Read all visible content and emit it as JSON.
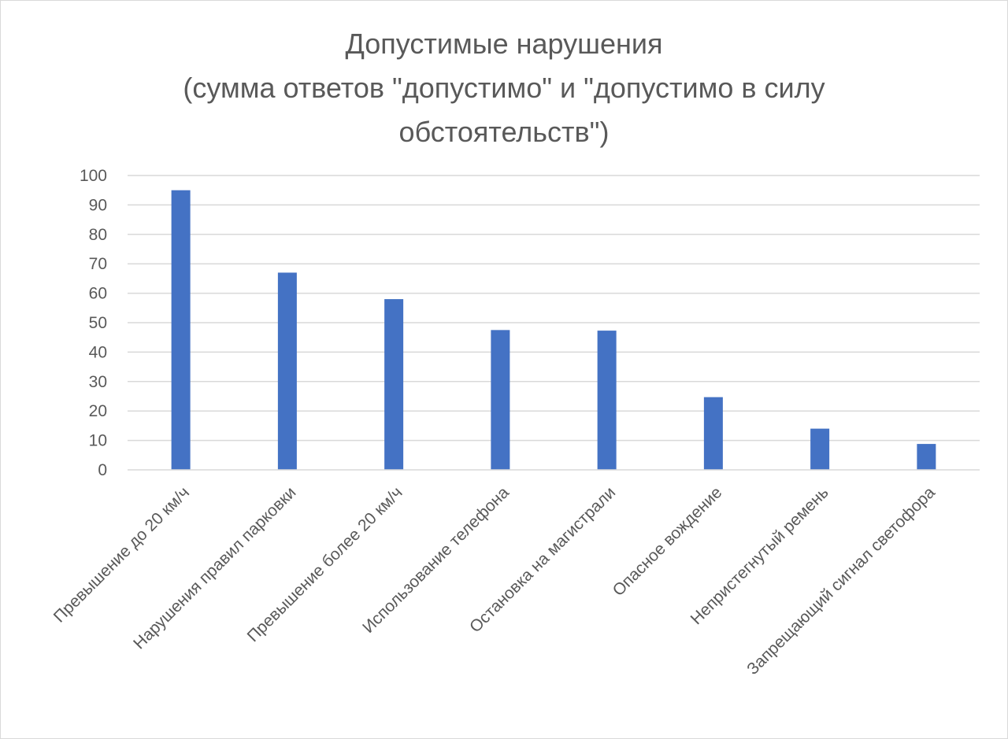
{
  "chart_data": {
    "type": "bar",
    "title_lines": [
      "Допустимые нарушения",
      "(сумма ответов \"допустимо\" и \"допустимо в силу",
      "обстоятельств\")"
    ],
    "categories": [
      "Превышение до 20 км/ч",
      "Нарушения правил парковки",
      "Превышение более 20 км/ч",
      "Использование телефона",
      "Остановка на магистрали",
      "Опасное вождение",
      "Непристегнутый ремень",
      "Запрещающий сигнал светофора"
    ],
    "values": [
      95,
      67,
      58,
      47.5,
      47.3,
      24.7,
      14,
      8.8
    ],
    "ylim": [
      0,
      100
    ],
    "yticks": [
      "0",
      "10",
      "20",
      "30",
      "40",
      "50",
      "60",
      "70",
      "80",
      "90",
      "100"
    ],
    "grid": true,
    "legend": "none",
    "colors": {
      "bar": "#4472c4",
      "grid": "#d9d9d9",
      "text": "#595959"
    }
  }
}
